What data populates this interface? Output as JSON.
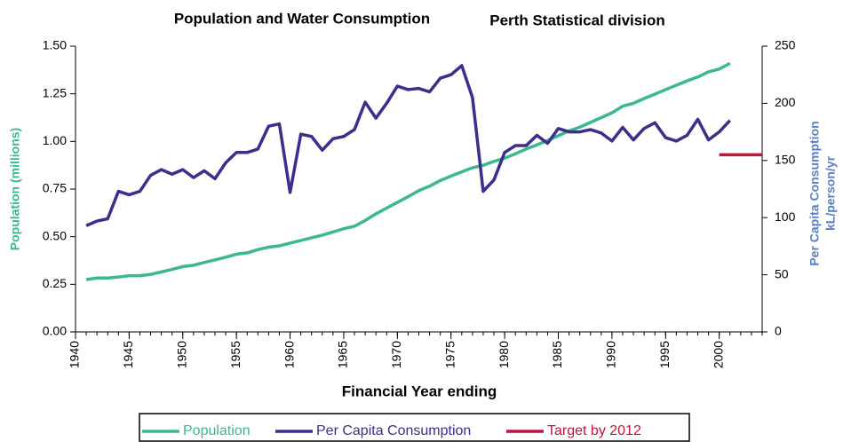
{
  "chart_data": {
    "type": "line",
    "title": "Population and Water Consumption",
    "subtitle": "Perth Statistical division",
    "x_label": "Financial Year ending",
    "y_label": "Population  (millions)",
    "y2_label": [
      "Per  Capita  Consumption",
      "kL/person/yr"
    ],
    "x": [
      1941,
      1942,
      1943,
      1944,
      1945,
      1946,
      1947,
      1948,
      1949,
      1950,
      1951,
      1952,
      1953,
      1954,
      1955,
      1956,
      1957,
      1958,
      1959,
      1960,
      1961,
      1962,
      1963,
      1964,
      1965,
      1966,
      1967,
      1968,
      1969,
      1970,
      1971,
      1972,
      1973,
      1974,
      1975,
      1976,
      1977,
      1978,
      1979,
      1980,
      1981,
      1982,
      1983,
      1984,
      1985,
      1986,
      1987,
      1988,
      1989,
      1990,
      1991,
      1992,
      1993,
      1994,
      1995,
      1996,
      1997,
      1998,
      1999,
      2000,
      2001
    ],
    "series": [
      {
        "name": "Population",
        "color": "#3cb890",
        "axis": "y",
        "values": [
          0.275,
          0.283,
          0.283,
          0.288,
          0.295,
          0.295,
          0.302,
          0.315,
          0.328,
          0.343,
          0.35,
          0.365,
          0.378,
          0.392,
          0.408,
          0.415,
          0.432,
          0.445,
          0.452,
          0.466,
          0.48,
          0.494,
          0.508,
          0.525,
          0.542,
          0.555,
          0.585,
          0.62,
          0.65,
          0.68,
          0.71,
          0.742,
          0.765,
          0.795,
          0.818,
          0.84,
          0.862,
          0.875,
          0.895,
          0.912,
          0.935,
          0.96,
          0.982,
          1.005,
          1.03,
          1.055,
          1.075,
          1.1,
          1.125,
          1.15,
          1.185,
          1.2,
          1.225,
          1.248,
          1.272,
          1.295,
          1.318,
          1.338,
          1.365,
          1.38,
          1.41
        ]
      },
      {
        "name": "Per Capita Consumption",
        "color": "#3d2e8c",
        "axis": "y2",
        "values": [
          93,
          97,
          99,
          123,
          120,
          123,
          137,
          142,
          138,
          142,
          135,
          141,
          134,
          148,
          157,
          157,
          160,
          180,
          182,
          122,
          173,
          171,
          159,
          169,
          171,
          177,
          201,
          187,
          200,
          215,
          212,
          213,
          210,
          222,
          225,
          233,
          205,
          123,
          133,
          157,
          163,
          163,
          172,
          165,
          178,
          175,
          175,
          177,
          174,
          167,
          179,
          168,
          178,
          183,
          170,
          167,
          172,
          186,
          168,
          175,
          185
        ]
      },
      {
        "name": "Target by 2012",
        "color": "#c0143c",
        "axis": "y2",
        "x": [
          2000,
          2004
        ],
        "values": [
          155,
          155
        ]
      }
    ],
    "xlim": [
      1940,
      2004
    ],
    "xticks": [
      1940,
      1945,
      1950,
      1955,
      1960,
      1965,
      1970,
      1975,
      1980,
      1985,
      1990,
      1995,
      2000
    ],
    "ylim": [
      0,
      1.5
    ],
    "yticks": [
      {
        "value": 0,
        "label": "0.00"
      },
      0.25,
      {
        "value": 0.5,
        "label": "0.50"
      },
      0.75,
      {
        "value": 1,
        "label": "1.00"
      },
      1.25,
      {
        "value": 1.5,
        "label": "1.50"
      }
    ],
    "y2lim": [
      0,
      250
    ],
    "y2ticks": [
      0,
      50,
      100,
      150,
      200,
      250
    ],
    "legend": "bottom"
  }
}
